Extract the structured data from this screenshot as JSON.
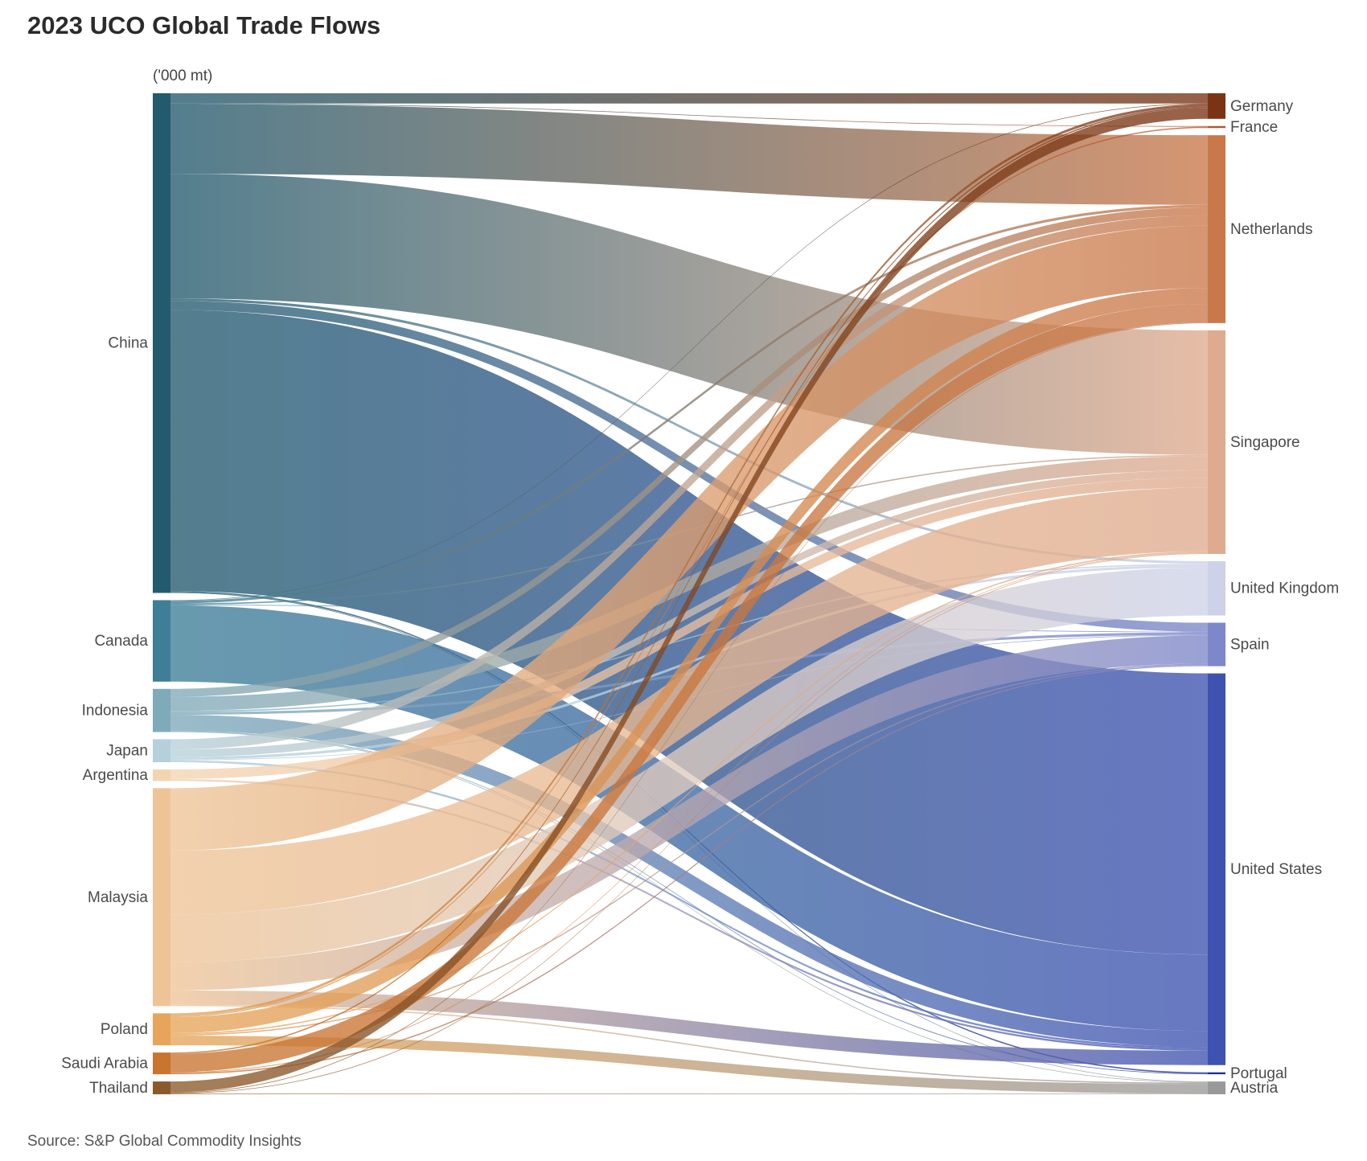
{
  "title": "2023 UCO Global Trade Flows",
  "source": "Source: S&P Global Commodity Insights",
  "chart_data": {
    "type": "sankey",
    "unit": "('000 mt)",
    "sources": [
      {
        "name": "China",
        "color": "#235a6e"
      },
      {
        "name": "Canada",
        "color": "#3e7e97"
      },
      {
        "name": "Indonesia",
        "color": "#7eaab9"
      },
      {
        "name": "Japan",
        "color": "#b5d0da"
      },
      {
        "name": "Argentina",
        "color": "#f3d4b2"
      },
      {
        "name": "Malaysia",
        "color": "#eec497"
      },
      {
        "name": "Poland",
        "color": "#e6a55a"
      },
      {
        "name": "Saudi Arabia",
        "color": "#c9742f"
      },
      {
        "name": "Thailand",
        "color": "#8b5a2b"
      }
    ],
    "targets": [
      {
        "name": "Germany",
        "color": "#7a3414"
      },
      {
        "name": "France",
        "color": "#b8532a"
      },
      {
        "name": "Netherlands",
        "color": "#c9784a"
      },
      {
        "name": "Singapore",
        "color": "#dfab8e"
      },
      {
        "name": "United Kingdom",
        "color": "#cdd2e8"
      },
      {
        "name": "Spain",
        "color": "#7d87c9"
      },
      {
        "name": "United States",
        "color": "#3e52b0"
      },
      {
        "name": "Portugal",
        "color": "#1f2f93"
      },
      {
        "name": "Austria",
        "color": "#999999"
      }
    ],
    "flows": [
      {
        "from": "China",
        "to": "Germany",
        "value": 32
      },
      {
        "from": "China",
        "to": "France",
        "value": 2
      },
      {
        "from": "China",
        "to": "Netherlands",
        "value": 218
      },
      {
        "from": "China",
        "to": "Singapore",
        "value": 390
      },
      {
        "from": "China",
        "to": "United Kingdom",
        "value": 8
      },
      {
        "from": "China",
        "to": "Spain",
        "value": 28
      },
      {
        "from": "China",
        "to": "United States",
        "value": 880
      },
      {
        "from": "China",
        "to": "Portugal",
        "value": 4
      },
      {
        "from": "China",
        "to": "Austria",
        "value": 2
      },
      {
        "from": "Canada",
        "to": "Germany",
        "value": 2
      },
      {
        "from": "Canada",
        "to": "Netherlands",
        "value": 8
      },
      {
        "from": "Canada",
        "to": "Singapore",
        "value": 4
      },
      {
        "from": "Canada",
        "to": "Spain",
        "value": 2
      },
      {
        "from": "Canada",
        "to": "United States",
        "value": 239
      },
      {
        "from": "Indonesia",
        "to": "Netherlands",
        "value": 25
      },
      {
        "from": "Indonesia",
        "to": "Singapore",
        "value": 44
      },
      {
        "from": "Indonesia",
        "to": "United Kingdom",
        "value": 4
      },
      {
        "from": "Indonesia",
        "to": "Spain",
        "value": 8
      },
      {
        "from": "Indonesia",
        "to": "United States",
        "value": 50
      },
      {
        "from": "Indonesia",
        "to": "Portugal",
        "value": 2
      },
      {
        "from": "Indonesia",
        "to": "Austria",
        "value": 2
      },
      {
        "from": "Japan",
        "to": "Netherlands",
        "value": 32
      },
      {
        "from": "Japan",
        "to": "Singapore",
        "value": 24
      },
      {
        "from": "Japan",
        "to": "United Kingdom",
        "value": 8
      },
      {
        "from": "Japan",
        "to": "Spain",
        "value": 2
      },
      {
        "from": "Japan",
        "to": "United States",
        "value": 6
      },
      {
        "from": "Argentina",
        "to": "Singapore",
        "value": 30
      },
      {
        "from": "Argentina",
        "to": "United States",
        "value": 6
      },
      {
        "from": "Malaysia",
        "to": "Netherlands",
        "value": 195
      },
      {
        "from": "Malaysia",
        "to": "Singapore",
        "value": 200
      },
      {
        "from": "Malaysia",
        "to": "United Kingdom",
        "value": 150
      },
      {
        "from": "Malaysia",
        "to": "Spain",
        "value": 88
      },
      {
        "from": "Malaysia",
        "to": "United States",
        "value": 45
      },
      {
        "from": "Malaysia",
        "to": "Austria",
        "value": 4
      },
      {
        "from": "Poland",
        "to": "Germany",
        "value": 8
      },
      {
        "from": "Poland",
        "to": "France",
        "value": 4
      },
      {
        "from": "Poland",
        "to": "Netherlands",
        "value": 50
      },
      {
        "from": "Poland",
        "to": "Singapore",
        "value": 4
      },
      {
        "from": "Poland",
        "to": "Spain",
        "value": 4
      },
      {
        "from": "Poland",
        "to": "Austria",
        "value": 30
      },
      {
        "from": "Saudi Arabia",
        "to": "Germany",
        "value": 4
      },
      {
        "from": "Saudi Arabia",
        "to": "Netherlands",
        "value": 58
      },
      {
        "from": "Saudi Arabia",
        "to": "Singapore",
        "value": 2
      },
      {
        "from": "Saudi Arabia",
        "to": "Spain",
        "value": 4
      },
      {
        "from": "Thailand",
        "to": "Germany",
        "value": 34
      },
      {
        "from": "Thailand",
        "to": "Netherlands",
        "value": 2
      },
      {
        "from": "Thailand",
        "to": "Singapore",
        "value": 2
      },
      {
        "from": "Thailand",
        "to": "Austria",
        "value": 2
      }
    ]
  }
}
